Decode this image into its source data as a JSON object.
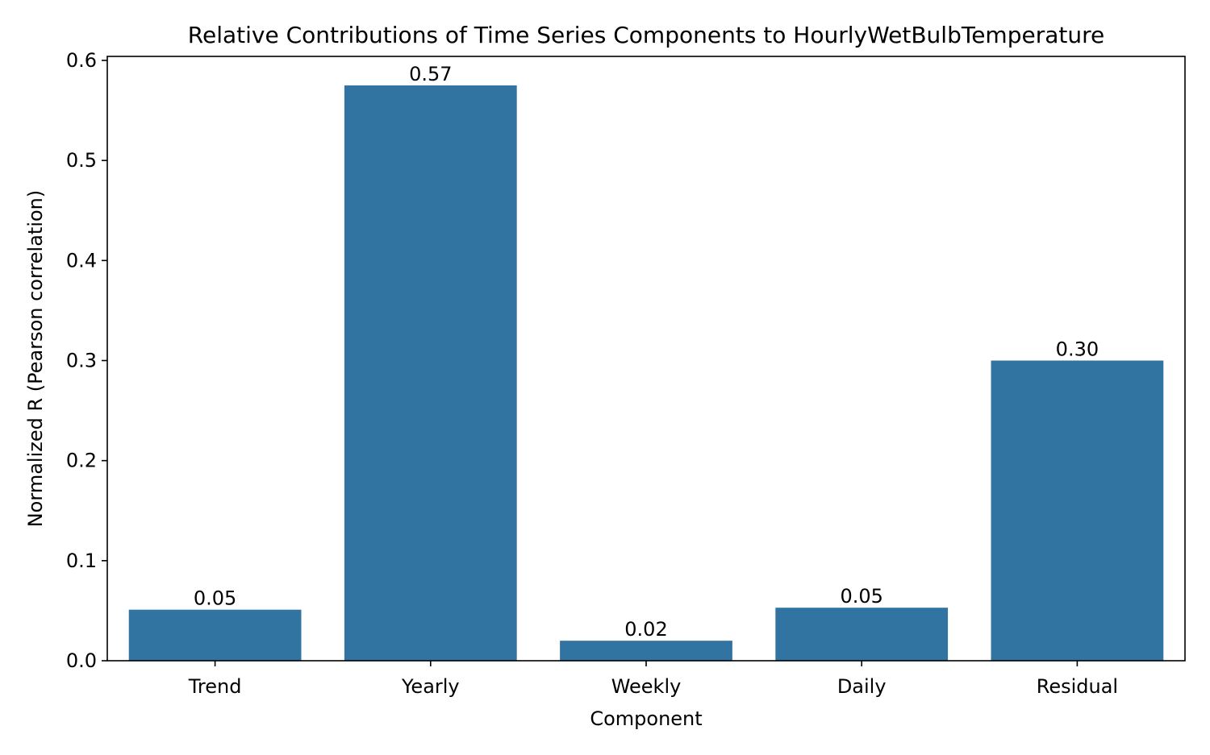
{
  "chart_data": {
    "type": "bar",
    "title": "Relative Contributions of Time Series Components to HourlyWetBulbTemperature",
    "xlabel": "Component",
    "ylabel": "Normalized R (Pearson correlation)",
    "categories": [
      "Trend",
      "Yearly",
      "Weekly",
      "Daily",
      "Residual"
    ],
    "values": [
      0.051,
      0.575,
      0.02,
      0.053,
      0.3
    ],
    "data_labels": [
      "0.05",
      "0.57",
      "0.02",
      "0.05",
      "0.30"
    ],
    "ylim": [
      0,
      0.604
    ],
    "yticks": [
      0.0,
      0.1,
      0.2,
      0.3,
      0.4,
      0.5,
      0.6
    ],
    "ytick_labels": [
      "0.0",
      "0.1",
      "0.2",
      "0.3",
      "0.4",
      "0.5",
      "0.6"
    ],
    "bar_color": "#3274a1",
    "grid": false,
    "legend": "none"
  }
}
